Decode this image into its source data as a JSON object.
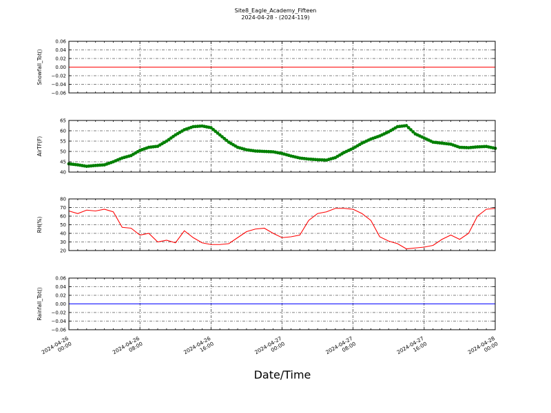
{
  "title": "Site8_Eagle_Academy_Fifteen",
  "subtitle": "2024-04-28 - (2024-119)",
  "xlabel": "Date/Time",
  "chart_data": [
    {
      "type": "line",
      "ylabel": "Snowfall_Tot()",
      "ylim": [
        -0.06,
        0.06
      ],
      "yticks": [
        "0.06",
        "0.04",
        "0.02",
        "0.00",
        "−0.02",
        "−0.04",
        "−0.06"
      ],
      "ytick_values": [
        0.06,
        0.04,
        0.02,
        0.0,
        -0.02,
        -0.04,
        -0.06
      ],
      "grid": true,
      "series": [
        {
          "color": "#ff0000",
          "marker": false,
          "x": [
            0,
            48
          ],
          "y": [
            0,
            0
          ]
        }
      ]
    },
    {
      "type": "line",
      "ylabel": "AirTF(F)",
      "ylim": [
        40,
        65
      ],
      "yticks": [
        "65",
        "60",
        "55",
        "50",
        "45",
        "40"
      ],
      "ytick_values": [
        65,
        60,
        55,
        50,
        45,
        40
      ],
      "grid": true,
      "series": [
        {
          "color": "#007f00",
          "marker": true,
          "x": [
            0,
            1,
            2,
            3,
            4,
            5,
            6,
            7,
            8,
            9,
            10,
            11,
            12,
            13,
            14,
            15,
            16,
            17,
            18,
            19,
            20,
            21,
            22,
            23,
            24,
            25,
            26,
            27,
            28,
            29,
            30,
            31,
            32,
            33,
            34,
            35,
            36,
            37,
            38,
            39,
            40,
            41,
            42,
            43,
            44,
            45,
            46,
            47,
            48
          ],
          "y": [
            44.0,
            43.5,
            42.8,
            43.2,
            43.5,
            45.0,
            46.8,
            48.0,
            50.5,
            52.0,
            52.5,
            55.0,
            58.0,
            60.5,
            62.0,
            62.3,
            61.5,
            58.0,
            54.5,
            52.0,
            50.8,
            50.2,
            50.0,
            49.8,
            49.0,
            47.8,
            46.8,
            46.3,
            46.0,
            45.8,
            47.0,
            49.5,
            51.5,
            54.0,
            56.0,
            57.5,
            59.5,
            62.0,
            62.5,
            58.5,
            56.5,
            54.5,
            54.0,
            53.5,
            52.0,
            51.8,
            52.2,
            52.4,
            51.5
          ]
        }
      ]
    },
    {
      "type": "line",
      "ylabel": "RH(%)",
      "ylim": [
        20,
        80
      ],
      "yticks": [
        "80",
        "70",
        "60",
        "50",
        "40",
        "30",
        "20"
      ],
      "ytick_values": [
        80,
        70,
        60,
        50,
        40,
        30,
        20
      ],
      "grid": true,
      "series": [
        {
          "color": "#ff0000",
          "marker": false,
          "x": [
            0,
            1,
            2,
            3,
            4,
            5,
            6,
            7,
            8,
            9,
            10,
            11,
            12,
            13,
            14,
            15,
            16,
            17,
            18,
            19,
            20,
            21,
            22,
            23,
            24,
            25,
            26,
            27,
            28,
            29,
            30,
            31,
            32,
            33,
            34,
            35,
            36,
            37,
            38,
            39,
            40,
            41,
            42,
            43,
            44,
            45,
            46,
            47,
            48
          ],
          "y": [
            66,
            63,
            67,
            66,
            68,
            65,
            47,
            46,
            38,
            40,
            30,
            32,
            29,
            43,
            35,
            29,
            27,
            27,
            28,
            35,
            42,
            45,
            46,
            40,
            35,
            36,
            38,
            55,
            63,
            65,
            69,
            69,
            68,
            63,
            55,
            36,
            31,
            28,
            22,
            23,
            24,
            26,
            33,
            38,
            33,
            40,
            60,
            68,
            69
          ]
        }
      ]
    },
    {
      "type": "line",
      "ylabel": "Rainfall_Tot()",
      "ylim": [
        -0.06,
        0.06
      ],
      "yticks": [
        "0.06",
        "0.04",
        "0.02",
        "0.00",
        "−0.02",
        "−0.04",
        "−0.06"
      ],
      "ytick_values": [
        0.06,
        0.04,
        0.02,
        0.0,
        -0.02,
        -0.04,
        -0.06
      ],
      "grid": true,
      "series": [
        {
          "color": "#0000ff",
          "marker": false,
          "x": [
            0,
            48
          ],
          "y": [
            0,
            0
          ]
        }
      ]
    }
  ],
  "x_axis": {
    "range_hours": [
      0,
      48
    ],
    "tick_hours": [
      0,
      8,
      16,
      24,
      32,
      40,
      48
    ],
    "tick_labels": [
      [
        "2024-04-26",
        "00:00"
      ],
      [
        "2024-04-26",
        "08:00"
      ],
      [
        "2024-04-26",
        "16:00"
      ],
      [
        "2024-04-27",
        "00:00"
      ],
      [
        "2024-04-27",
        "08:00"
      ],
      [
        "2024-04-27",
        "16:00"
      ],
      [
        "2024-04-28",
        "00:00"
      ]
    ]
  }
}
